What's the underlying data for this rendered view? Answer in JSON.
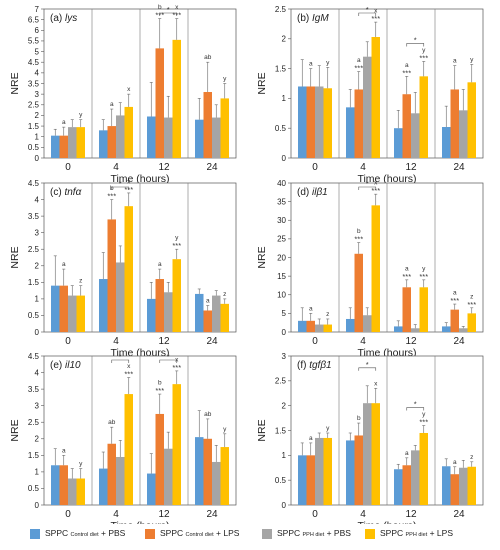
{
  "chart_data": [
    {
      "type": "bar",
      "panel": "(a)",
      "gene": "lys",
      "ylabel": "NRE",
      "xlabel": "Time (hours)",
      "ylim": [
        0,
        7
      ],
      "yticks": [
        0,
        0.5,
        1,
        1.5,
        2,
        2.5,
        3,
        3.5,
        4,
        4.5,
        5,
        5.5,
        6,
        6.5,
        7
      ],
      "categories": [
        "0",
        "4",
        "12",
        "24"
      ],
      "series": [
        {
          "values": [
            1.05,
            1.3,
            1.95,
            1.8
          ],
          "err": [
            0.3,
            0.5,
            1.6,
            1.0
          ]
        },
        {
          "values": [
            1.05,
            1.5,
            5.15,
            3.1
          ],
          "err": [
            0.4,
            0.8,
            1.4,
            1.4
          ]
        },
        {
          "values": [
            1.45,
            2.0,
            1.9,
            1.9
          ],
          "err": [
            0.35,
            0.6,
            1.0,
            0.6
          ]
        },
        {
          "values": [
            1.45,
            2.4,
            5.55,
            2.8
          ],
          "err": [
            0.35,
            0.6,
            1.0,
            0.7
          ]
        }
      ],
      "labels": [
        {
          "group": 0,
          "series": 1,
          "text": "a"
        },
        {
          "group": 0,
          "series": 3,
          "text": "y"
        },
        {
          "group": 1,
          "series": 1,
          "text": "a"
        },
        {
          "group": 1,
          "series": 3,
          "text": "x"
        },
        {
          "group": 2,
          "series": 1,
          "text": "b\n***"
        },
        {
          "group": 2,
          "series": 3,
          "text": "x\n***"
        },
        {
          "group": 3,
          "series": 1,
          "text": "ab"
        },
        {
          "group": 3,
          "series": 3,
          "text": "y"
        }
      ],
      "brackets": [
        {
          "group": 2,
          "from": 1,
          "to": 3,
          "text": "*"
        }
      ]
    },
    {
      "type": "bar",
      "panel": "(b)",
      "gene": "IgM",
      "ylabel": "NRE",
      "xlabel": "Time (hours)",
      "ylim": [
        0,
        2.5
      ],
      "yticks": [
        0,
        0.5,
        1,
        1.5,
        2,
        2.5
      ],
      "categories": [
        "0",
        "4",
        "12",
        "24"
      ],
      "series": [
        {
          "values": [
            1.2,
            0.85,
            0.5,
            0.52
          ],
          "err": [
            0.45,
            0.3,
            0.3,
            0.35
          ]
        },
        {
          "values": [
            1.2,
            1.15,
            1.07,
            1.15
          ],
          "err": [
            0.3,
            0.3,
            0.3,
            0.4
          ]
        },
        {
          "values": [
            1.2,
            1.7,
            0.75,
            0.8
          ],
          "err": [
            0.35,
            0.25,
            0.35,
            0.35
          ]
        },
        {
          "values": [
            1.17,
            2.03,
            1.37,
            1.27
          ],
          "err": [
            0.35,
            0.25,
            0.25,
            0.3
          ]
        }
      ],
      "labels": [
        {
          "group": 0,
          "series": 1,
          "text": "a"
        },
        {
          "group": 0,
          "series": 3,
          "text": "y"
        },
        {
          "group": 1,
          "series": 1,
          "text": "a\n***"
        },
        {
          "group": 1,
          "series": 3,
          "text": "x\n***"
        },
        {
          "group": 2,
          "series": 1,
          "text": "a\n***"
        },
        {
          "group": 2,
          "series": 3,
          "text": "y\n***"
        },
        {
          "group": 3,
          "series": 1,
          "text": "a"
        },
        {
          "group": 3,
          "series": 3,
          "text": "y"
        }
      ],
      "brackets": [
        {
          "group": 1,
          "from": 1,
          "to": 3,
          "text": "*"
        },
        {
          "group": 2,
          "from": 1,
          "to": 3,
          "text": "*"
        }
      ]
    },
    {
      "type": "bar",
      "panel": "(c)",
      "gene": "tnfα",
      "ylabel": "NRE",
      "xlabel": "Time (hours)",
      "ylim": [
        0,
        4.5
      ],
      "yticks": [
        0,
        0.5,
        1,
        1.5,
        2,
        2.5,
        3,
        3.5,
        4,
        4.5
      ],
      "categories": [
        "0",
        "4",
        "12",
        "24"
      ],
      "series": [
        {
          "values": [
            1.4,
            1.6,
            1.0,
            1.15
          ],
          "err": [
            0.9,
            0.8,
            0.5,
            0.15
          ]
        },
        {
          "values": [
            1.4,
            3.4,
            1.6,
            0.65
          ],
          "err": [
            0.5,
            0.6,
            0.3,
            0.15
          ]
        },
        {
          "values": [
            1.1,
            2.1,
            1.2,
            1.1
          ],
          "err": [
            0.3,
            0.5,
            0.3,
            0.15
          ]
        },
        {
          "values": [
            1.1,
            3.8,
            2.2,
            0.85
          ],
          "err": [
            0.3,
            0.4,
            0.3,
            0.15
          ]
        }
      ],
      "labels": [
        {
          "group": 0,
          "series": 1,
          "text": "a"
        },
        {
          "group": 0,
          "series": 3,
          "text": "z"
        },
        {
          "group": 1,
          "series": 1,
          "text": "b\n***"
        },
        {
          "group": 1,
          "series": 3,
          "text": "x\n***"
        },
        {
          "group": 2,
          "series": 1,
          "text": "a"
        },
        {
          "group": 2,
          "series": 3,
          "text": "y\n***"
        },
        {
          "group": 3,
          "series": 1,
          "text": "a"
        },
        {
          "group": 3,
          "series": 3,
          "text": "z"
        }
      ],
      "brackets": [
        {
          "group": 1,
          "from": 1,
          "to": 3,
          "text": "*"
        }
      ]
    },
    {
      "type": "bar",
      "panel": "(d)",
      "gene": "ilβ1",
      "ylabel": "NRE",
      "xlabel": "Time (hours)",
      "ylim": [
        0,
        40
      ],
      "yticks": [
        0,
        5,
        10,
        15,
        20,
        25,
        30,
        35,
        40
      ],
      "categories": [
        "0",
        "4",
        "12",
        "24"
      ],
      "series": [
        {
          "values": [
            3.0,
            3.5,
            1.5,
            1.5
          ],
          "err": [
            3.5,
            3.0,
            1.5,
            1.0
          ]
        },
        {
          "values": [
            3.0,
            21.0,
            12.0,
            6.0
          ],
          "err": [
            2.0,
            3.0,
            2.0,
            1.5
          ]
        },
        {
          "values": [
            2.0,
            4.5,
            1.0,
            1.0
          ],
          "err": [
            1.5,
            2.0,
            1.0,
            0.5
          ]
        },
        {
          "values": [
            2.0,
            34.0,
            12.0,
            5.0
          ],
          "err": [
            1.5,
            3.0,
            2.0,
            1.5
          ]
        }
      ],
      "labels": [
        {
          "group": 0,
          "series": 1,
          "text": "a"
        },
        {
          "group": 0,
          "series": 3,
          "text": "z"
        },
        {
          "group": 1,
          "series": 1,
          "text": "b\n***"
        },
        {
          "group": 1,
          "series": 3,
          "text": "x\n***"
        },
        {
          "group": 2,
          "series": 1,
          "text": "a\n***"
        },
        {
          "group": 2,
          "series": 3,
          "text": "y\n***"
        },
        {
          "group": 3,
          "series": 1,
          "text": "a\n***"
        },
        {
          "group": 3,
          "series": 3,
          "text": "z\n***"
        }
      ],
      "brackets": [
        {
          "group": 1,
          "from": 1,
          "to": 3,
          "text": "*"
        }
      ]
    },
    {
      "type": "bar",
      "panel": "(e)",
      "gene": "il10",
      "ylabel": "NRE",
      "xlabel": "Time (hours)",
      "ylim": [
        0,
        4.5
      ],
      "yticks": [
        0,
        0.5,
        1,
        1.5,
        2,
        2.5,
        3,
        3.5,
        4,
        4.5
      ],
      "categories": [
        "0",
        "4",
        "12",
        "24"
      ],
      "series": [
        {
          "values": [
            1.2,
            1.1,
            0.95,
            2.05
          ],
          "err": [
            0.5,
            0.5,
            0.6,
            0.8
          ]
        },
        {
          "values": [
            1.2,
            1.85,
            2.75,
            2.0
          ],
          "err": [
            0.3,
            0.5,
            0.6,
            0.6
          ]
        },
        {
          "values": [
            0.8,
            1.45,
            1.7,
            1.3
          ],
          "err": [
            0.3,
            0.5,
            0.5,
            0.5
          ]
        },
        {
          "values": [
            0.8,
            3.35,
            3.65,
            1.75
          ],
          "err": [
            0.3,
            0.5,
            0.4,
            0.4
          ]
        }
      ],
      "labels": [
        {
          "group": 0,
          "series": 1,
          "text": "a"
        },
        {
          "group": 0,
          "series": 3,
          "text": "y"
        },
        {
          "group": 1,
          "series": 1,
          "text": "ab"
        },
        {
          "group": 1,
          "series": 3,
          "text": "x\n***"
        },
        {
          "group": 2,
          "series": 1,
          "text": "b\n***"
        },
        {
          "group": 2,
          "series": 3,
          "text": "x\n***"
        },
        {
          "group": 3,
          "series": 1,
          "text": "ab"
        },
        {
          "group": 3,
          "series": 3,
          "text": "y"
        }
      ],
      "brackets": [
        {
          "group": 1,
          "from": 1,
          "to": 3,
          "text": "*"
        },
        {
          "group": 2,
          "from": 1,
          "to": 3,
          "text": "*"
        }
      ]
    },
    {
      "type": "bar",
      "panel": "(f)",
      "gene": "tgfβ1",
      "ylabel": "NRE",
      "xlabel": "Time (hours)",
      "ylim": [
        0,
        3
      ],
      "yticks": [
        0,
        0.5,
        1,
        1.5,
        2,
        2.5,
        3
      ],
      "categories": [
        "0",
        "4",
        "12",
        "24"
      ],
      "series": [
        {
          "values": [
            1.0,
            1.3,
            0.72,
            0.78
          ],
          "err": [
            0.25,
            0.15,
            0.1,
            0.15
          ]
        },
        {
          "values": [
            1.0,
            1.4,
            0.8,
            0.62
          ],
          "err": [
            0.25,
            0.25,
            0.15,
            0.15
          ]
        },
        {
          "values": [
            1.35,
            2.05,
            1.1,
            0.75
          ],
          "err": [
            0.1,
            0.35,
            0.1,
            0.15
          ]
        },
        {
          "values": [
            1.35,
            2.05,
            1.45,
            0.77
          ],
          "err": [
            0.1,
            0.3,
            0.15,
            0.1
          ]
        }
      ],
      "labels": [
        {
          "group": 0,
          "series": 1,
          "text": "a"
        },
        {
          "group": 0,
          "series": 3,
          "text": "y"
        },
        {
          "group": 1,
          "series": 1,
          "text": "b"
        },
        {
          "group": 1,
          "series": 3,
          "text": "x"
        },
        {
          "group": 2,
          "series": 1,
          "text": "a"
        },
        {
          "group": 2,
          "series": 3,
          "text": "y\n***"
        },
        {
          "group": 3,
          "series": 1,
          "text": "a"
        },
        {
          "group": 3,
          "series": 3,
          "text": "z"
        }
      ],
      "brackets": [
        {
          "group": 1,
          "from": 1,
          "to": 3,
          "text": "*"
        },
        {
          "group": 2,
          "from": 1,
          "to": 3,
          "text": "*"
        }
      ]
    }
  ],
  "series_colors": [
    "#5b9bd5",
    "#ed7d31",
    "#a5a5a5",
    "#ffc000"
  ],
  "legend": [
    {
      "main": "SPPC ",
      "sub": "Control diet",
      "tail": " + PBS"
    },
    {
      "main": "SPPC ",
      "sub": "Control diet",
      "tail": " + LPS"
    },
    {
      "main": "SPPC ",
      "sub": "PPH diet",
      "tail": " + PBS"
    },
    {
      "main": "SPPC ",
      "sub": "PPH diet",
      "tail": " + LPS"
    }
  ]
}
